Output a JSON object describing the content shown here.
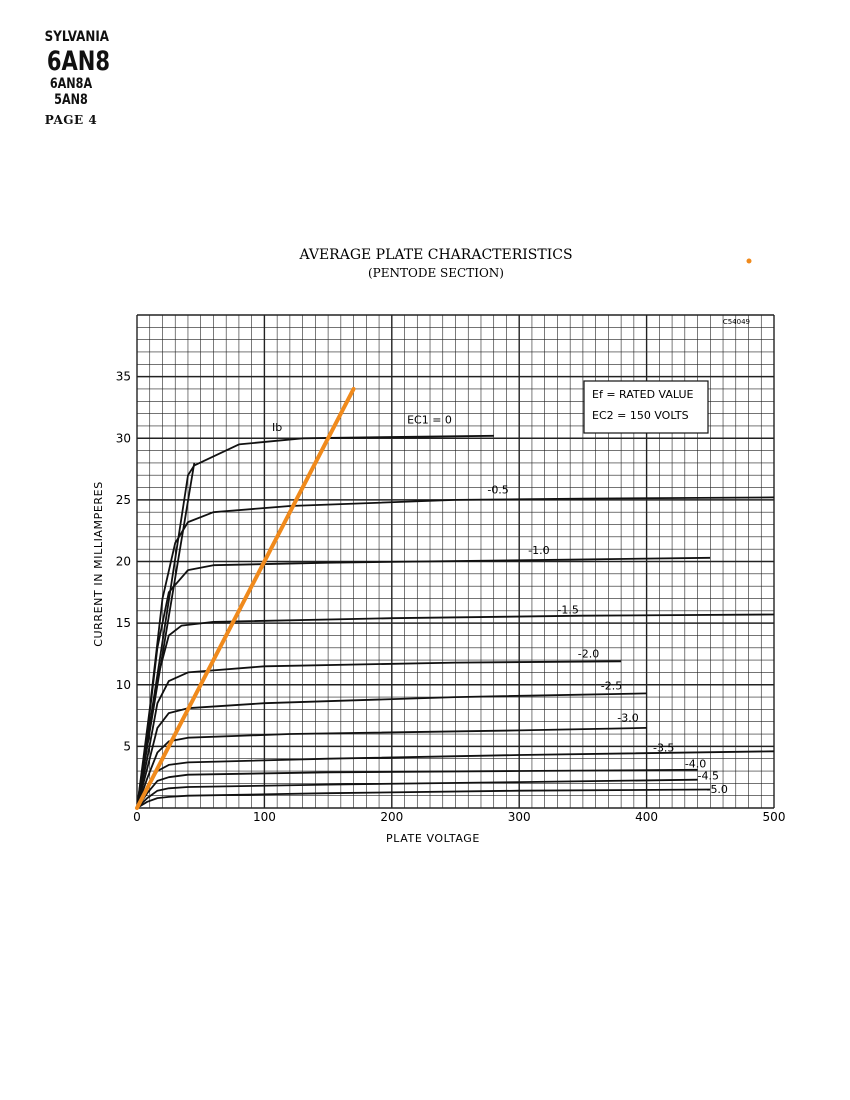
{
  "header": {
    "brand": "SYLVANIA",
    "model": "6AN8",
    "alt_model_1": "6AN8A",
    "alt_model_2": "5AN8",
    "page_label": "PAGE 4"
  },
  "chart_data": {
    "type": "line",
    "title": "AVERAGE PLATE CHARACTERISTICS",
    "subtitle": "(PENTODE SECTION)",
    "code": "C54049",
    "xlabel": "PLATE VOLTAGE",
    "ylabel": "CURRENT IN MILLIAMPERES",
    "xlim": [
      0,
      500
    ],
    "ylim": [
      0,
      40
    ],
    "x_ticks": [
      "0",
      "100",
      "200",
      "300",
      "400",
      "500"
    ],
    "y_ticks": [
      "5",
      "10",
      "15",
      "20",
      "25",
      "30",
      "35"
    ],
    "grid": true,
    "legend_box": {
      "line1": "Ef = RATED VALUE",
      "line2": "EC2 = 150 VOLTS"
    },
    "curve_label_ib": "Ib",
    "series": [
      {
        "name": "EC1 = 0",
        "label": "EC1 = 0",
        "points": [
          [
            0,
            0
          ],
          [
            40,
            27
          ],
          [
            45,
            27.8
          ],
          [
            80,
            29.5
          ],
          [
            130,
            30
          ],
          [
            200,
            30.1
          ],
          [
            280,
            30.2
          ]
        ]
      },
      {
        "name": "-0.5",
        "label": "-0.5",
        "points": [
          [
            0,
            0
          ],
          [
            10,
            8
          ],
          [
            20,
            17
          ],
          [
            30,
            21.5
          ],
          [
            40,
            23.2
          ],
          [
            60,
            24
          ],
          [
            120,
            24.5
          ],
          [
            250,
            25
          ],
          [
            350,
            25.1
          ],
          [
            500,
            25.2
          ]
        ]
      },
      {
        "name": "-1.0",
        "label": "-1.0",
        "points": [
          [
            0,
            0
          ],
          [
            8,
            6
          ],
          [
            16,
            13
          ],
          [
            25,
            17.5
          ],
          [
            40,
            19.3
          ],
          [
            60,
            19.7
          ],
          [
            150,
            19.9
          ],
          [
            300,
            20.1
          ],
          [
            450,
            20.3
          ]
        ]
      },
      {
        "name": "-1.5",
        "label": "-1.5",
        "points": [
          [
            0,
            0
          ],
          [
            8,
            5
          ],
          [
            16,
            10.5
          ],
          [
            25,
            14
          ],
          [
            35,
            14.8
          ],
          [
            60,
            15.1
          ],
          [
            200,
            15.4
          ],
          [
            350,
            15.6
          ],
          [
            500,
            15.7
          ]
        ]
      },
      {
        "name": "-2.0",
        "label": "-2.0",
        "points": [
          [
            0,
            0
          ],
          [
            8,
            4
          ],
          [
            16,
            8.5
          ],
          [
            25,
            10.3
          ],
          [
            40,
            11
          ],
          [
            100,
            11.5
          ],
          [
            250,
            11.8
          ],
          [
            380,
            11.9
          ]
        ]
      },
      {
        "name": "-2.5",
        "label": "-2.5",
        "points": [
          [
            0,
            0
          ],
          [
            8,
            3.2
          ],
          [
            16,
            6.5
          ],
          [
            25,
            7.7
          ],
          [
            40,
            8.1
          ],
          [
            100,
            8.5
          ],
          [
            250,
            9
          ],
          [
            400,
            9.3
          ]
        ]
      },
      {
        "name": "-3.0",
        "label": "-3.0",
        "points": [
          [
            0,
            0
          ],
          [
            8,
            2.4
          ],
          [
            16,
            4.5
          ],
          [
            25,
            5.4
          ],
          [
            40,
            5.7
          ],
          [
            120,
            6
          ],
          [
            300,
            6.3
          ],
          [
            400,
            6.5
          ]
        ]
      },
      {
        "name": "-3.5",
        "label": "-3.5",
        "points": [
          [
            0,
            0
          ],
          [
            8,
            1.7
          ],
          [
            16,
            3
          ],
          [
            25,
            3.5
          ],
          [
            40,
            3.7
          ],
          [
            150,
            4
          ],
          [
            300,
            4.3
          ],
          [
            500,
            4.6
          ]
        ]
      },
      {
        "name": "-4.0",
        "label": "-4.0",
        "points": [
          [
            0,
            0
          ],
          [
            8,
            1.2
          ],
          [
            16,
            2.2
          ],
          [
            25,
            2.5
          ],
          [
            40,
            2.7
          ],
          [
            150,
            2.9
          ],
          [
            300,
            3
          ],
          [
            440,
            3.1
          ]
        ]
      },
      {
        "name": "-4.5",
        "label": "-4.5",
        "points": [
          [
            0,
            0
          ],
          [
            8,
            0.8
          ],
          [
            16,
            1.4
          ],
          [
            25,
            1.6
          ],
          [
            40,
            1.7
          ],
          [
            150,
            1.9
          ],
          [
            300,
            2.1
          ],
          [
            440,
            2.3
          ]
        ]
      },
      {
        "name": "-5.0",
        "label": "-5.0",
        "points": [
          [
            0,
            0
          ],
          [
            8,
            0.5
          ],
          [
            16,
            0.8
          ],
          [
            25,
            0.9
          ],
          [
            40,
            1
          ],
          [
            150,
            1.2
          ],
          [
            300,
            1.4
          ],
          [
            450,
            1.5
          ]
        ]
      }
    ],
    "ib_knee": [
      [
        0,
        0
      ],
      [
        45,
        28
      ]
    ],
    "overlay_line": {
      "points": [
        [
          0,
          0
        ],
        [
          170,
          34
        ]
      ],
      "color": "#f08a1c"
    },
    "overlay_dot": {
      "color": "#f08a1c"
    }
  }
}
